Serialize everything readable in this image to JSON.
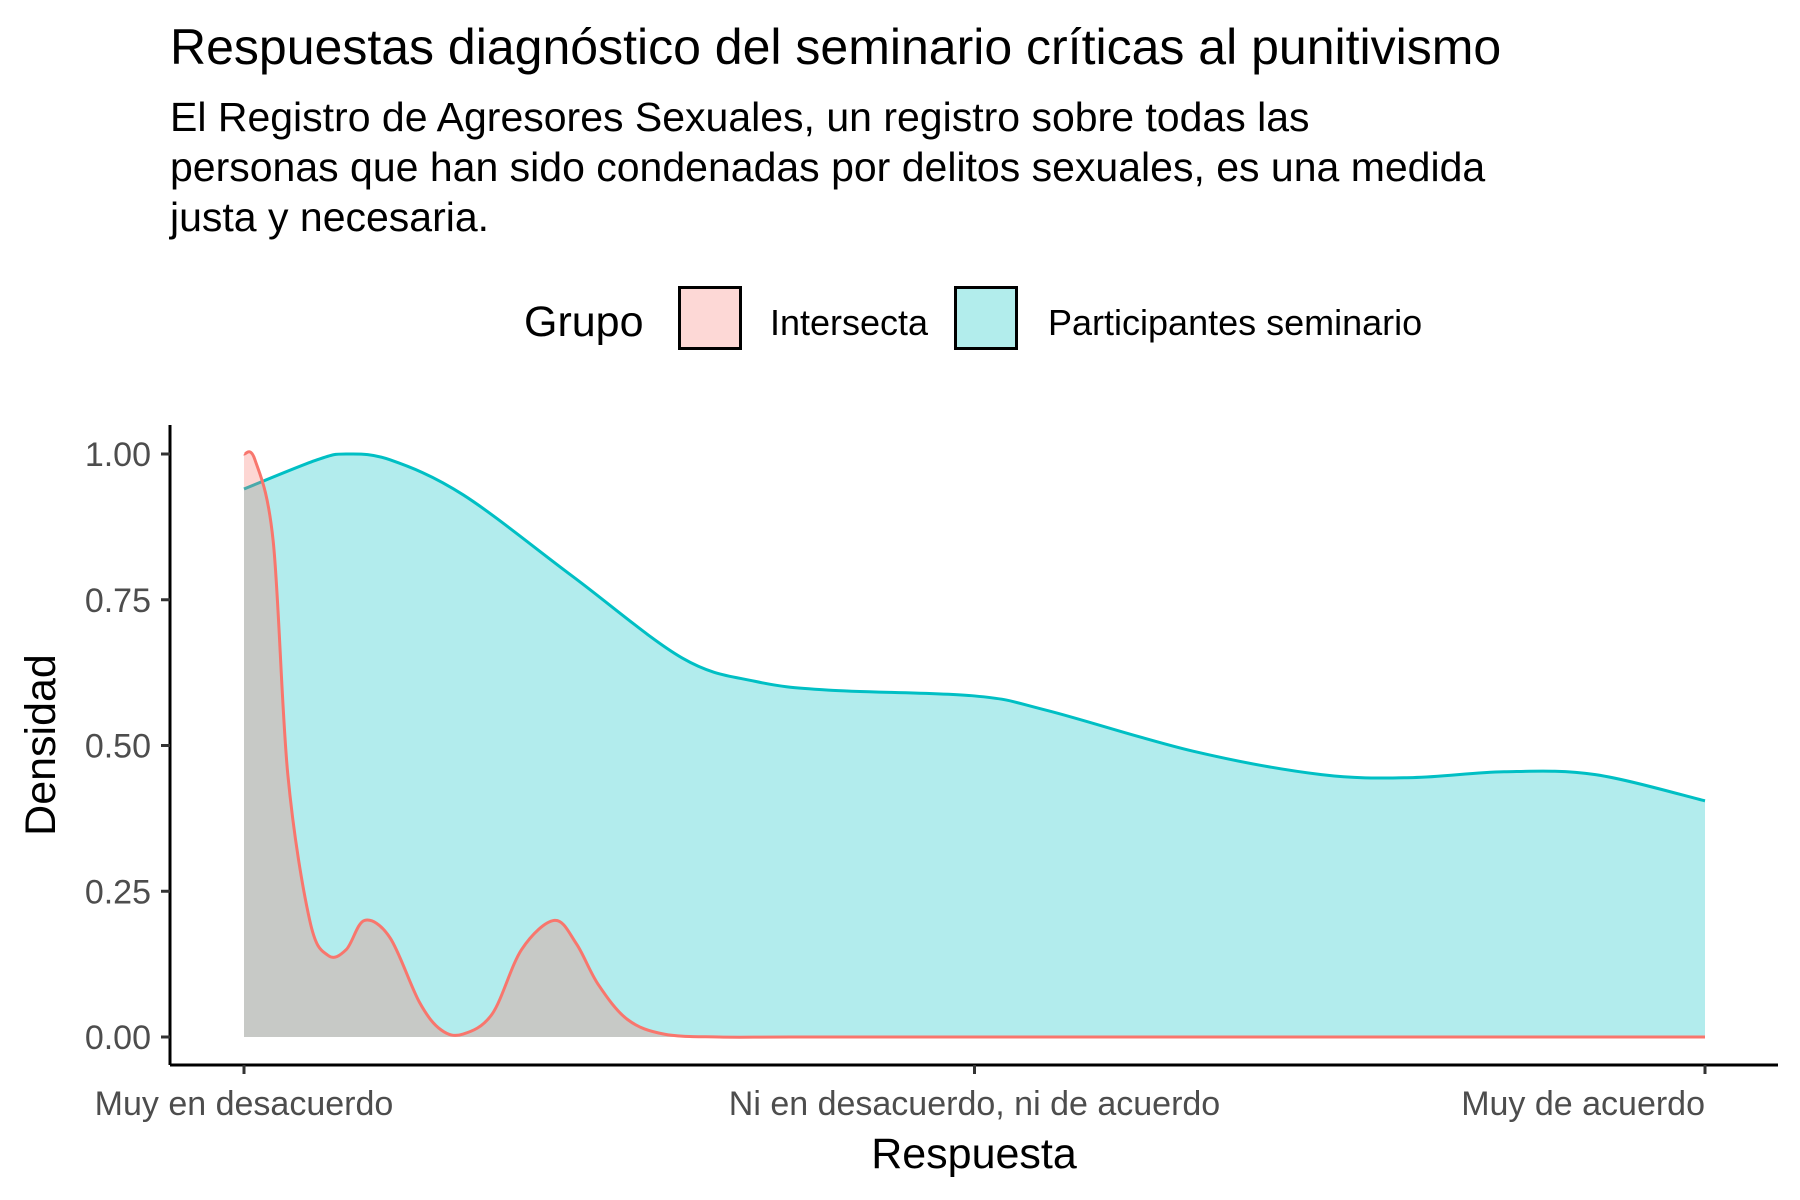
{
  "chart_data": {
    "type": "area",
    "title": "Respuestas diagnóstico del seminario críticas al punitivismo",
    "subtitle_lines": [
      "El Registro de Agresores Sexuales, un registro sobre todas las",
      "personas que han sido condenadas por delitos sexuales, es una medida",
      "justa y necesaria."
    ],
    "xlabel": "Respuesta",
    "ylabel": "Densidad",
    "x_ticks": [
      "Muy en desacuerdo",
      "Ni en desacuerdo, ni de acuerdo",
      "Muy de acuerdo"
    ],
    "xlim": [
      1,
      5
    ],
    "ylim": [
      0,
      1
    ],
    "y_ticks": [
      "0.00",
      "0.25",
      "0.50",
      "0.75",
      "1.00"
    ],
    "legend": {
      "title": "Grupo",
      "position": "top",
      "entries": [
        "Intersecta",
        "Participantes seminario"
      ]
    },
    "grid": false,
    "series": [
      {
        "name": "Participantes seminario",
        "line_color": "#00BFC4",
        "fill_color": "#00BFC4",
        "fill_opacity": 0.3,
        "x": [
          1.0,
          1.2,
          1.28,
          1.4,
          1.6,
          1.9,
          2.2,
          2.4,
          2.6,
          3.0,
          3.2,
          3.6,
          3.95,
          4.2,
          4.45,
          4.7,
          5.0
        ],
        "y": [
          0.94,
          0.99,
          1.0,
          0.99,
          0.93,
          0.79,
          0.65,
          0.61,
          0.595,
          0.585,
          0.56,
          0.49,
          0.45,
          0.445,
          0.455,
          0.45,
          0.405
        ]
      },
      {
        "name": "Intersecta",
        "line_color": "#F8766D",
        "fill_color": "#F8766D",
        "fill_opacity": 0.3,
        "x": [
          1.0,
          1.03,
          1.08,
          1.12,
          1.18,
          1.23,
          1.28,
          1.33,
          1.4,
          1.48,
          1.54,
          1.6,
          1.68,
          1.76,
          1.85,
          1.91,
          1.97,
          2.05,
          2.15,
          2.3,
          2.5,
          3.0,
          4.0,
          5.0
        ],
        "y": [
          1.0,
          0.99,
          0.85,
          0.45,
          0.2,
          0.14,
          0.15,
          0.2,
          0.17,
          0.06,
          0.012,
          0.005,
          0.04,
          0.15,
          0.2,
          0.16,
          0.09,
          0.03,
          0.005,
          0.0,
          0.0,
          0.0,
          0.0,
          0.0
        ]
      }
    ]
  }
}
